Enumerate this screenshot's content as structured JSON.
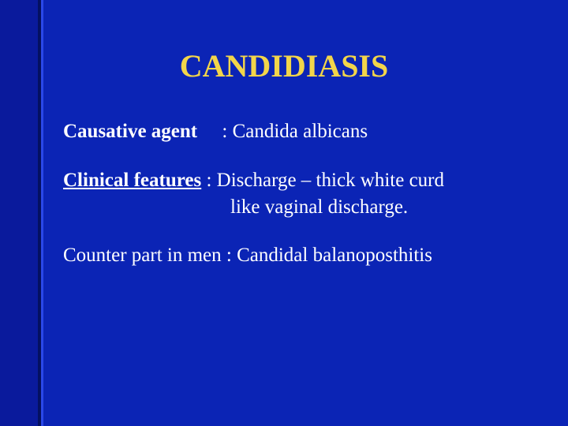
{
  "colors": {
    "bg_left": "#0a1a9c",
    "bg_main": "#0b24b5",
    "edge_dark": "#041060",
    "edge_light": "#2a48e8",
    "title": "#f2d54a",
    "body": "#ffffff"
  },
  "title": "CANDIDIASIS",
  "rows": {
    "r1": {
      "label": "Causative agent",
      "gap": "     ",
      "value": ": Candida albicans"
    },
    "r2": {
      "label": "Clinical features",
      "tail": " : Discharge – thick white curd",
      "line2": "like vaginal discharge."
    },
    "r3": {
      "text": "Counter part in men  : Candidal balanoposthitis"
    }
  }
}
